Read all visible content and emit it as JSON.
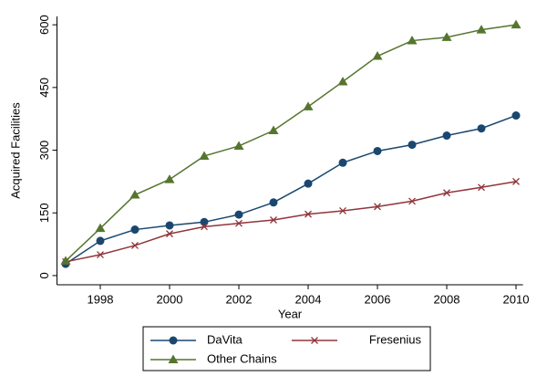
{
  "chart_data": {
    "type": "line",
    "x": [
      1997,
      1998,
      1999,
      2000,
      2001,
      2002,
      2003,
      2004,
      2005,
      2006,
      2007,
      2008,
      2009,
      2010
    ],
    "series": [
      {
        "name": "DaVita",
        "color": "#1a476f",
        "marker": "circle",
        "values": [
          28,
          83,
          110,
          120,
          128,
          146,
          175,
          220,
          270,
          298,
          313,
          335,
          352,
          383
        ]
      },
      {
        "name": "Fresenius",
        "color": "#90353b",
        "marker": "x",
        "values": [
          33,
          50,
          72,
          100,
          117,
          125,
          133,
          147,
          155,
          165,
          178,
          198,
          211,
          225
        ]
      },
      {
        "name": "Other Chains",
        "color": "#55752f",
        "marker": "triangle",
        "values": [
          35,
          113,
          193,
          230,
          286,
          310,
          347,
          404,
          464,
          525,
          562,
          570,
          588,
          600
        ]
      }
    ],
    "xlabel": "Year",
    "ylabel": "Acquired Facilities",
    "xlim": [
      1996.75,
      2010.2
    ],
    "xticks": [
      1998,
      2000,
      2002,
      2004,
      2006,
      2008,
      2010
    ],
    "ylim": [
      -22,
      620
    ],
    "yticks": [
      0,
      150,
      300,
      450,
      600
    ],
    "grid": false
  }
}
